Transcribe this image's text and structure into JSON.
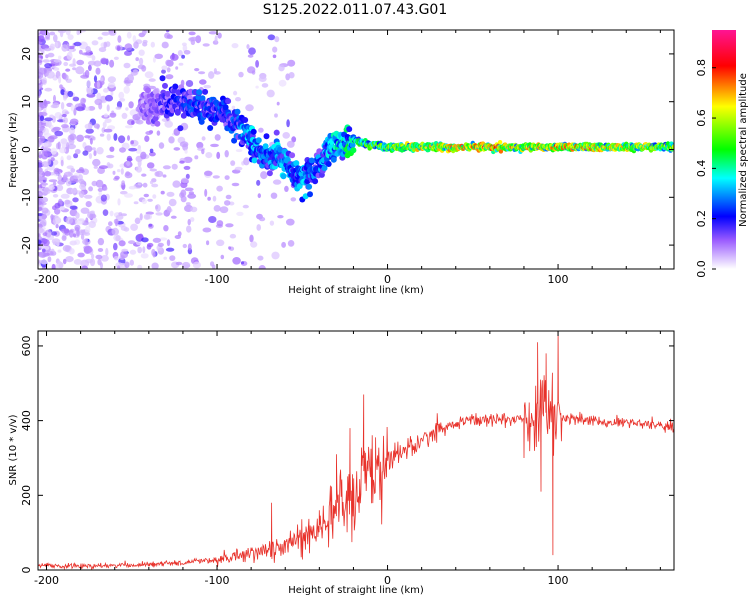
{
  "title": "S125.2022.011.07.43.G01",
  "colors": {
    "line": "#e8322b",
    "axis": "#000000",
    "colormap": [
      "#ffffff",
      "#6a00ff",
      "#0000ff",
      "#00ffff",
      "#00ff00",
      "#ffff00",
      "#ff0000",
      "#ff1493"
    ]
  },
  "chart_data": [
    {
      "type": "heatmap",
      "title": "",
      "xlabel": "Height of straight line (km)",
      "ylabel": "Frequency (Hz)",
      "xlim": [
        -205,
        168
      ],
      "ylim": [
        -25,
        25
      ],
      "xticks": [
        -200,
        -100,
        0,
        100
      ],
      "yticks": [
        -20,
        -10,
        0,
        10,
        20
      ],
      "colorbar": {
        "label": "Normalized spectral amplitude",
        "range": [
          0.0,
          0.95
        ],
        "ticks": [
          "0.0",
          "0.2",
          "0.4",
          "0.6",
          "0.8"
        ]
      },
      "ridge": {
        "x": [
          -140,
          -125,
          -110,
          -100,
          -90,
          -85,
          -80,
          -75,
          -70,
          -65,
          -60,
          -55,
          -50,
          -45,
          -40,
          -35,
          -30,
          -20,
          -10,
          0,
          20,
          40,
          60,
          80,
          100,
          120,
          140,
          168
        ],
        "y": [
          9,
          10,
          9,
          8,
          6,
          4,
          2,
          0,
          -2,
          -1,
          -3,
          -5,
          -6,
          -5,
          -3,
          0,
          1,
          2,
          1,
          0.5,
          0.5,
          0.5,
          0.5,
          0.5,
          0.5,
          0.5,
          0.5,
          0.5
        ],
        "amplitude": [
          0.15,
          0.25,
          0.3,
          0.3,
          0.3,
          0.35,
          0.4,
          0.35,
          0.35,
          0.4,
          0.4,
          0.35,
          0.4,
          0.35,
          0.35,
          0.4,
          0.45,
          0.55,
          0.6,
          0.7,
          0.75,
          0.8,
          0.85,
          0.8,
          0.85,
          0.8,
          0.75,
          0.7
        ]
      }
    },
    {
      "type": "line",
      "title": "",
      "xlabel": "Height of straight line (km)",
      "ylabel": "SNR (10 * v/v)",
      "xlim": [
        -205,
        168
      ],
      "ylim": [
        0,
        640
      ],
      "xticks": [
        -200,
        -100,
        0,
        100
      ],
      "yticks": [
        0,
        200,
        400,
        600
      ],
      "series": [
        {
          "x": [
            -205,
            -180,
            -160,
            -140,
            -120,
            -100,
            -90,
            -80,
            -70,
            -60,
            -50,
            -40,
            -30,
            -20,
            -15,
            -10,
            -5,
            0,
            10,
            20,
            30,
            40,
            50,
            60,
            70,
            80,
            85,
            90,
            95,
            100,
            105,
            110,
            120,
            140,
            168
          ],
          "values": [
            12,
            10,
            12,
            15,
            20,
            28,
            35,
            45,
            60,
            65,
            85,
            110,
            160,
            210,
            235,
            250,
            270,
            290,
            320,
            350,
            375,
            395,
            402,
            405,
            398,
            405,
            420,
            430,
            440,
            410,
            405,
            405,
            400,
            395,
            385
          ]
        }
      ],
      "spikes": [
        {
          "x": -68,
          "y": 180
        },
        {
          "x": -40,
          "y": 160
        },
        {
          "x": -30,
          "y": 310
        },
        {
          "x": -22,
          "y": 380
        },
        {
          "x": -14,
          "y": 470
        },
        {
          "x": -7,
          "y": 355
        },
        {
          "x": 88,
          "y": 610
        },
        {
          "x": 93,
          "y": 580
        },
        {
          "x": 97,
          "y": 40
        },
        {
          "x": 100,
          "y": 640
        },
        {
          "x": 90,
          "y": 210
        },
        {
          "x": 80,
          "y": 300
        }
      ]
    }
  ]
}
